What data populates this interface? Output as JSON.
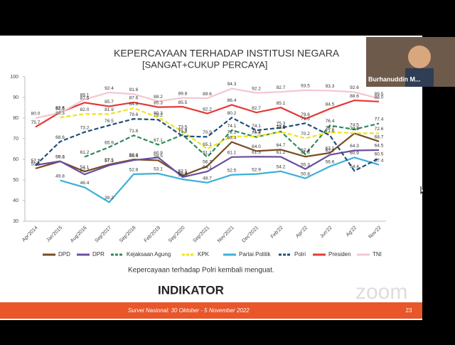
{
  "chart_data": {
    "type": "line",
    "title": "KEPERCAYAAN TERHADAP INSTITUSI NEGARA",
    "subtitle": "[SANGAT+CUKUP PERCAYA]",
    "annotation": "Kepercayaan terhadap Polri kembali menguat.",
    "categories": [
      "Apr'2014",
      "Jan'2015",
      "Aug'2016",
      "Sep'2017",
      "Sep'2018",
      "Feb'2019",
      "Sep'2020",
      "Sep'2021",
      "Nov'2021",
      "Dec'2021",
      "Feb'22",
      "Apr'22",
      "Jun'22",
      "Ag'22",
      "Nov'22"
    ],
    "ylim": [
      30,
      100
    ],
    "yticks": [
      30,
      40,
      50,
      60,
      70,
      80,
      90,
      100
    ],
    "legend": "bottom",
    "series": [
      {
        "name": "DPD",
        "color": "#7a4b22",
        "dashed": false,
        "values": [
          55.6,
          59.0,
          54.1,
          57.5,
          59.9,
          59.5,
          52.1,
          56.7,
          68.4,
          64.0,
          64.7,
          61.3,
          63.1,
          72.6,
          68.7
        ],
        "value_labels": [
          "55.6",
          "59.0",
          "54.1",
          "57.5",
          "59.9",
          "59.5",
          "52.1",
          "56.7",
          "68.4",
          "64.0",
          "64.7",
          "61.3",
          "63.1",
          "72.6",
          "68.7"
        ]
      },
      {
        "name": "DPR",
        "color": "#6b4fa0",
        "dashed": false,
        "values": [
          57.2,
          59.1,
          52.7,
          57.1,
          59.6,
          60.9,
          51.4,
          54.1,
          61.1,
          61.3,
          61.2,
          55.3,
          62.2,
          64.3,
          64.5
        ]
      },
      {
        "name": "Kejaksaan Agung",
        "color": "#2e8b57",
        "dashed": true,
        "values": [
          null,
          null,
          61.2,
          65.9,
          71.6,
          67.1,
          71.9,
          61.1,
          74.1,
          70.8,
          73.5,
          62.4,
          76.4,
          74.5,
          77.4
        ]
      },
      {
        "name": "KPK",
        "color": "#efe31a",
        "dashed": true,
        "values": [
          null,
          80.3,
          82.0,
          81.9,
          84.8,
          80.3,
          73.5,
          65.1,
          71.1,
          71.2,
          73.3,
          70.2,
          73.2,
          72.7,
          72.6
        ],
        "value_labels": [
          null,
          "80.3",
          "82.0",
          "81.9",
          "84.8",
          "80.3",
          "73.5",
          "65.1",
          "71.1",
          "71.2",
          "73.3",
          "70.2",
          "73.2",
          "72.7",
          "72.6"
        ]
      },
      {
        "name": "Partai Politik",
        "color": "#3bb0d9",
        "dashed": false,
        "values": [
          null,
          49.8,
          46.4,
          39.2,
          52.8,
          53.1,
          50.3,
          48.7,
          52.5,
          52.9,
          54.2,
          50.8,
          56.6,
          60.9,
          57.4
        ]
      },
      {
        "name": "Polri",
        "color": "#1f4e79",
        "dashed": true,
        "values": [
          57.1,
          68.6,
          73.2,
          76.5,
          79.6,
          79.2,
          71.2,
          70.9,
          80.2,
          74.1,
          75.3,
          77.5,
          71.6,
          54.4,
          60.5
        ]
      },
      {
        "name": "Presiden",
        "color": "#e53935",
        "dashed": false,
        "values": [
          75.7,
          82.8,
          87.5,
          85.7,
          87.6,
          85.3,
          85.5,
          82.2,
          86.4,
          82.7,
          85.1,
          79.6,
          84.5,
          88.6,
          88.0
        ],
        "value_labels": [
          "75.7",
          "82.8",
          "87.5",
          "85.7",
          "87.6",
          "85.3",
          "85.5",
          "82.2",
          "86.4",
          "82.7",
          "85.1",
          "79.6",
          "84.5",
          "88.6",
          "88.0"
        ]
      },
      {
        "name": "TNI",
        "color": "#f4c7cf",
        "dashed": false,
        "values": [
          80.0,
          82.5,
          89.1,
          92.4,
          91.6,
          88.2,
          89.8,
          89.6,
          94.3,
          92.2,
          92.7,
          93.5,
          93.3,
          92.6,
          89.5
        ],
        "value_labels": [
          "80.0",
          "82.5",
          "89.1",
          "92.4",
          "91.6",
          "88.2",
          "89.8",
          "89.6",
          "94.3",
          "92.2",
          "92.7",
          "93.5",
          "93.3",
          "92.6",
          "89.5"
        ]
      }
    ]
  },
  "slide": {
    "logo": "INDIKATOR",
    "footer": "Survei Nasional: 30 Oktober - 5 November 2022",
    "page_number": "23"
  },
  "meeting": {
    "speaker": "Burhanuddin M...",
    "watermark": "zoom"
  }
}
